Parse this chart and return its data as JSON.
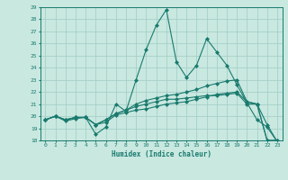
{
  "xlabel": "Humidex (Indice chaleur)",
  "ylabel": "",
  "background_color": "#c8e8e0",
  "line_color": "#1a7a6e",
  "grid_color": "#a0ccc4",
  "xlim": [
    -0.5,
    23.5
  ],
  "ylim": [
    18,
    29
  ],
  "xticks": [
    0,
    1,
    2,
    3,
    4,
    5,
    6,
    7,
    8,
    9,
    10,
    11,
    12,
    13,
    14,
    15,
    16,
    17,
    18,
    19,
    20,
    21,
    22,
    23
  ],
  "yticks": [
    18,
    19,
    20,
    21,
    22,
    23,
    24,
    25,
    26,
    27,
    28,
    29
  ],
  "series": [
    [
      19.7,
      20.0,
      19.6,
      19.8,
      19.9,
      18.5,
      19.1,
      21.0,
      20.4,
      23.0,
      25.5,
      27.5,
      28.8,
      24.5,
      23.2,
      24.2,
      26.4,
      25.3,
      24.2,
      22.6,
      21.1,
      19.7,
      19.1,
      17.9
    ],
    [
      19.7,
      20.0,
      19.7,
      19.9,
      19.9,
      19.3,
      19.5,
      20.1,
      20.3,
      20.5,
      20.6,
      20.8,
      21.0,
      21.1,
      21.2,
      21.4,
      21.6,
      21.8,
      21.9,
      22.0,
      21.2,
      21.0,
      18.0,
      18.0
    ],
    [
      19.7,
      20.0,
      19.7,
      19.9,
      19.9,
      19.3,
      19.7,
      20.2,
      20.5,
      21.0,
      21.3,
      21.5,
      21.7,
      21.8,
      22.0,
      22.2,
      22.5,
      22.7,
      22.9,
      23.0,
      21.2,
      21.0,
      19.3,
      17.9
    ],
    [
      19.7,
      20.0,
      19.7,
      19.9,
      19.9,
      19.3,
      19.7,
      20.2,
      20.5,
      20.8,
      21.0,
      21.2,
      21.4,
      21.4,
      21.5,
      21.6,
      21.7,
      21.7,
      21.8,
      21.9,
      21.0,
      21.0,
      18.0,
      18.0
    ]
  ]
}
